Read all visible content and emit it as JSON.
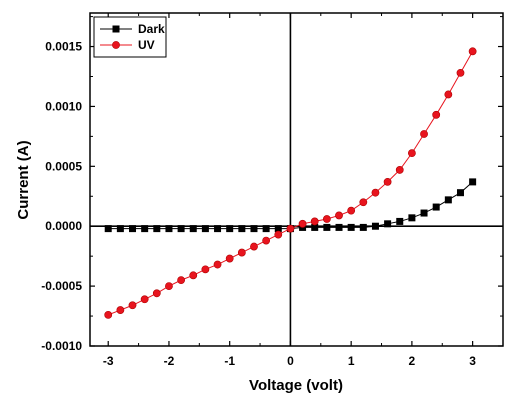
{
  "chart_data": {
    "type": "line",
    "xlabel": "Voltage (volt)",
    "ylabel": "Current (A)",
    "xlim": [
      -3.3,
      3.5
    ],
    "ylim": [
      -0.001,
      0.00178
    ],
    "x_ticks": [
      -3,
      -2,
      -1,
      0,
      1,
      2,
      3
    ],
    "x_tick_labels": [
      "-3",
      "-2",
      "-1",
      "0",
      "1",
      "2",
      "3"
    ],
    "y_ticks": [
      -0.001,
      -0.0005,
      0,
      0.0005,
      0.001,
      0.0015
    ],
    "y_tick_labels": [
      "-0.0010",
      "-0.0005",
      "0.0000",
      "0.0005",
      "0.0010",
      "0.0015"
    ],
    "legend_position": "top-left",
    "x": [
      -3.0,
      -2.8,
      -2.6,
      -2.4,
      -2.2,
      -2.0,
      -1.8,
      -1.6,
      -1.4,
      -1.2,
      -1.0,
      -0.8,
      -0.6,
      -0.4,
      -0.2,
      0.0,
      0.2,
      0.4,
      0.6,
      0.8,
      1.0,
      1.2,
      1.4,
      1.6,
      1.8,
      2.0,
      2.2,
      2.4,
      2.6,
      2.8,
      3.0
    ],
    "series": [
      {
        "name": "Dark",
        "marker": "square",
        "color": "#000000",
        "values": [
          -2e-05,
          -2e-05,
          -2e-05,
          -2e-05,
          -2e-05,
          -2e-05,
          -2e-05,
          -2e-05,
          -2e-05,
          -2e-05,
          -2e-05,
          -2e-05,
          -2e-05,
          -2e-05,
          -2e-05,
          -2e-05,
          -1e-05,
          -1e-05,
          -1e-05,
          -1e-05,
          -1e-05,
          -1e-05,
          0.0,
          2e-05,
          4e-05,
          7e-05,
          0.00011,
          0.00016,
          0.00022,
          0.00028,
          0.00037
        ]
      },
      {
        "name": "UV",
        "marker": "circle",
        "color": "#e8141e",
        "values": [
          -0.00074,
          -0.0007,
          -0.00066,
          -0.00061,
          -0.00056,
          -0.0005,
          -0.00045,
          -0.00041,
          -0.00036,
          -0.00032,
          -0.00027,
          -0.00022,
          -0.00017,
          -0.00012,
          -7e-05,
          -2e-05,
          2e-05,
          4e-05,
          6e-05,
          9e-05,
          0.00013,
          0.0002,
          0.00028,
          0.00037,
          0.00047,
          0.00061,
          0.00077,
          0.00093,
          0.0011,
          0.00128,
          0.00146
        ]
      }
    ]
  }
}
